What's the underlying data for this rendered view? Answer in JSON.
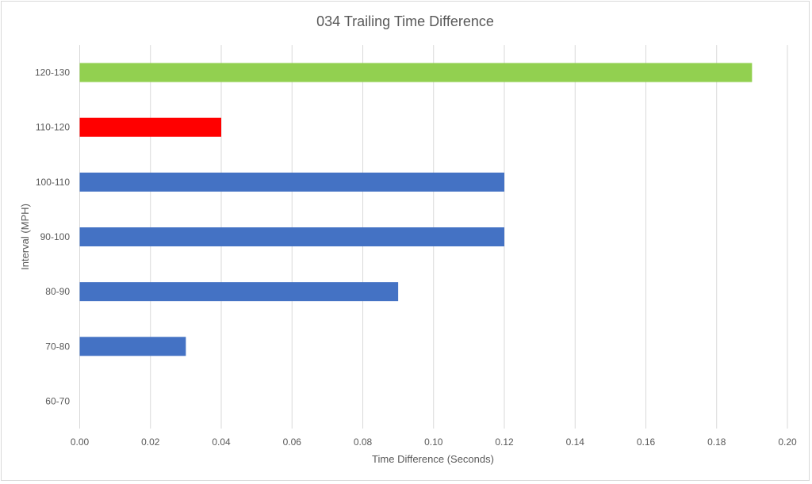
{
  "chart_data": {
    "type": "bar",
    "orientation": "horizontal",
    "title": "034 Trailing Time Difference",
    "xlabel": "Time Difference (Seconds)",
    "ylabel": "Interval (MPH)",
    "categories": [
      "60-70",
      "70-80",
      "80-90",
      "90-100",
      "100-110",
      "110-120",
      "120-130"
    ],
    "values": [
      0,
      0.03,
      0.09,
      0.12,
      0.12,
      0.04,
      0.19
    ],
    "bar_colors": [
      "#4472C4",
      "#4472C4",
      "#4472C4",
      "#4472C4",
      "#4472C4",
      "#FF0000",
      "#92D050"
    ],
    "xlim": [
      0,
      0.2
    ],
    "xticks": [
      "0.00",
      "0.02",
      "0.04",
      "0.06",
      "0.08",
      "0.10",
      "0.12",
      "0.14",
      "0.16",
      "0.18",
      "0.20"
    ],
    "grid": "vertical",
    "legend": "none"
  }
}
